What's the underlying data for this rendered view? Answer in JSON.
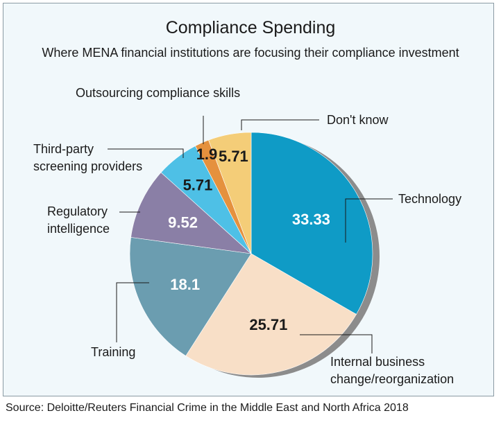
{
  "chart_data": {
    "type": "pie",
    "title": "Compliance Spending",
    "subtitle": "Where MENA financial institutions are focusing their compliance investment",
    "source": "Source: Deloitte/Reuters Financial Crime in the Middle East and North Africa 2018",
    "slices": [
      {
        "label": "Technology",
        "value": 33.33,
        "value_text": "33.33",
        "color": "#0f9bc6",
        "text_color": "#ffffff"
      },
      {
        "label": "Internal business change/reorganization",
        "label_lines": [
          "Internal business",
          "change/reorganization"
        ],
        "value": 25.71,
        "value_text": "25.71",
        "color": "#f8dfc7",
        "text_color": "#1a1a1a"
      },
      {
        "label": "Training",
        "value": 18.1,
        "value_text": "18.1",
        "color": "#6b9db0",
        "text_color": "#ffffff"
      },
      {
        "label": "Regulatory intelligence",
        "label_lines": [
          "Regulatory",
          "intelligence"
        ],
        "value": 9.52,
        "value_text": "9.52",
        "color": "#8a7fa6",
        "text_color": "#ffffff"
      },
      {
        "label": "Third-party screening providers",
        "label_lines": [
          "Third-party",
          "screening providers"
        ],
        "value": 5.71,
        "value_text": "5.71",
        "color": "#4ec0e6",
        "text_color": "#1a1a1a"
      },
      {
        "label": "Outsourcing compliance skills",
        "value": 1.9,
        "value_text": "1.9",
        "color": "#e5913e",
        "text_color": "#1a1a1a"
      },
      {
        "label": "Don't know",
        "value": 5.71,
        "value_text": "5.71",
        "color": "#f4cd78",
        "text_color": "#1a1a1a"
      }
    ]
  }
}
